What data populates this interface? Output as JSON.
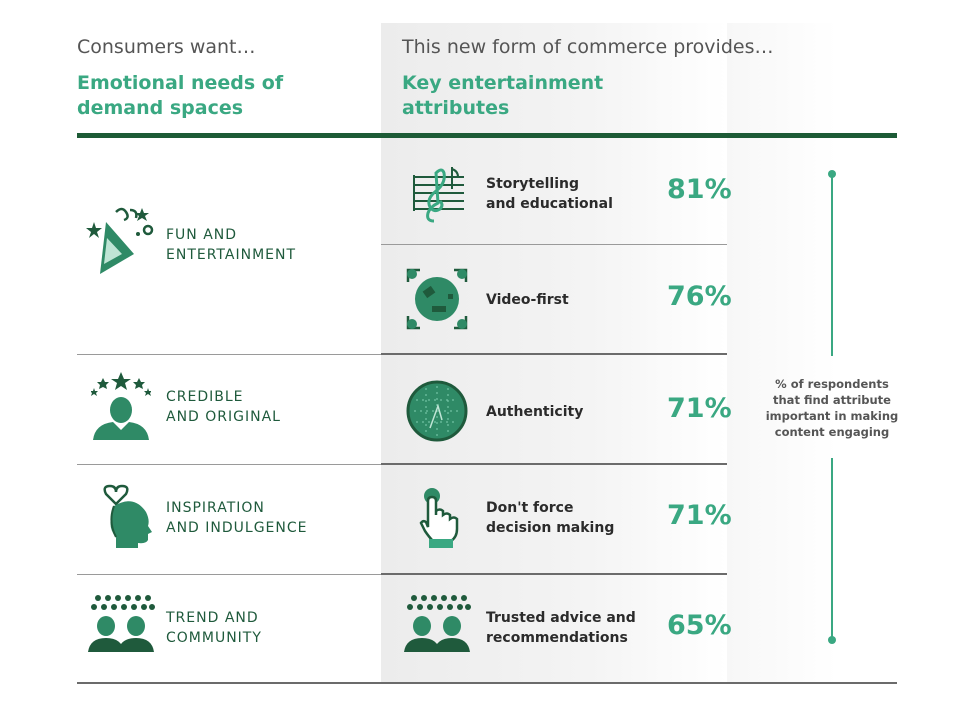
{
  "header": {
    "left_sub": "Consumers want…",
    "left_title_1": "Emotional needs of",
    "left_title_2": "demand spaces",
    "right_sub": "This new form of commerce provides…",
    "right_title_1": "Key entertainment",
    "right_title_2": "attributes"
  },
  "needs": [
    {
      "line1": "FUN AND",
      "line2": "ENTERTAINMENT",
      "icon": "party-hat-icon"
    },
    {
      "line1": "CREDIBLE",
      "line2": "AND ORIGINAL",
      "icon": "star-person-icon"
    },
    {
      "line1": "INSPIRATION",
      "line2": "AND INDULGENCE",
      "icon": "head-heart-icon"
    },
    {
      "line1": "TREND AND",
      "line2": "COMMUNITY",
      "icon": "crowd-icon"
    }
  ],
  "attributes": [
    {
      "line1": "Storytelling",
      "line2": "and educational",
      "value": "81%",
      "icon": "music-sheet-icon"
    },
    {
      "line1": "Video-first",
      "line2": "",
      "value": "76%",
      "icon": "video-focus-icon"
    },
    {
      "line1": "Authenticity",
      "line2": "",
      "value": "71%",
      "icon": "authenticity-seal-icon"
    },
    {
      "line1": "Don't force",
      "line2": "decision making",
      "value": "71%",
      "icon": "pointer-hand-icon"
    },
    {
      "line1": "Trusted advice and",
      "line2": "recommendations",
      "value": "65%",
      "icon": "crowd-icon"
    }
  ],
  "note": {
    "line1": "% of respondents",
    "line2": "that find attribute",
    "line3": "important in making",
    "line4": "content engaging"
  },
  "colors": {
    "accent": "#3aa882",
    "dark_green": "#1d5b36",
    "icon_green": "#2f8a66"
  }
}
